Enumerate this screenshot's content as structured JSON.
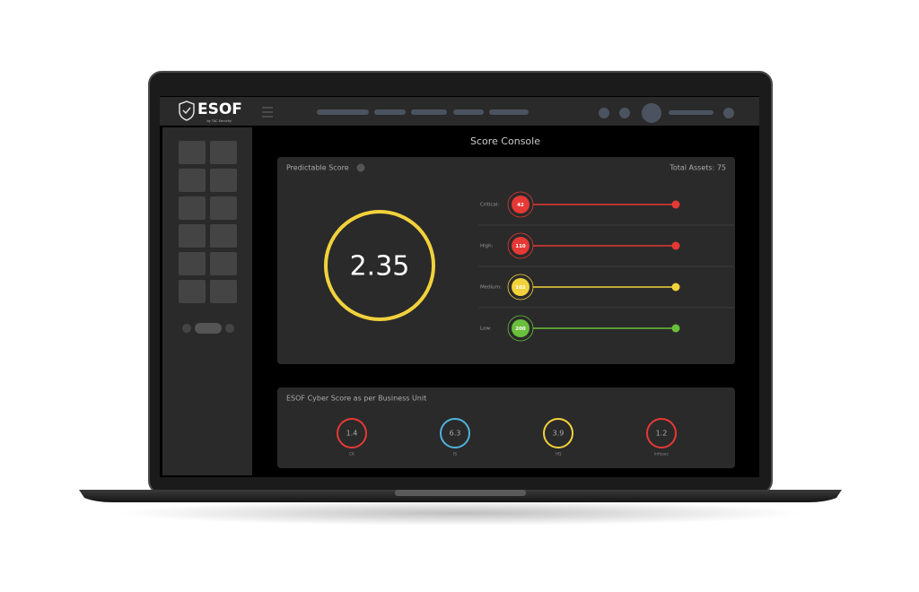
{
  "header": {
    "logo": "ESOF",
    "logo_subtitle": "by TAC Security"
  },
  "title": "Score Console",
  "predictable": {
    "heading": "Predictable Score",
    "total_assets": "Total Assets: 75",
    "score": "2.35",
    "rows": [
      {
        "label": "Critical:",
        "value": "42"
      },
      {
        "label": "High:",
        "value": "110"
      },
      {
        "label": "Medium:",
        "value": "102"
      },
      {
        "label": "Low:",
        "value": "200"
      }
    ]
  },
  "business": {
    "heading": "ESOF Cyber Score as per Business Unit",
    "units": [
      {
        "score": "1.4",
        "label": "CK"
      },
      {
        "score": "6.3",
        "label": "IS"
      },
      {
        "score": "3.9",
        "label": "HQ"
      },
      {
        "score": "1.2",
        "label": "Infosec"
      }
    ]
  }
}
